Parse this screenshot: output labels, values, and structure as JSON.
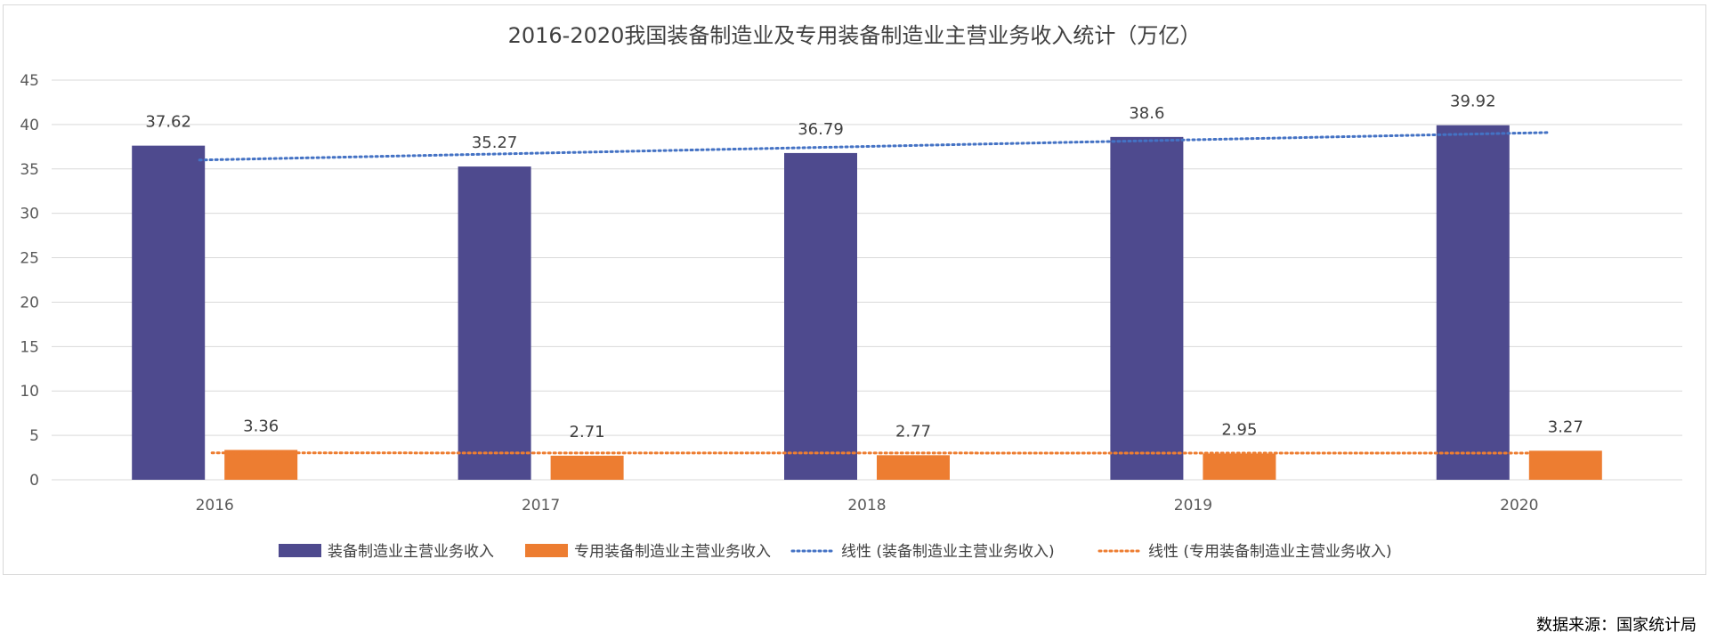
{
  "chart_data": {
    "type": "bar",
    "title": "2016-2020我国装备制造业及专用装备制造业主营业务收入统计（万亿）",
    "categories": [
      "2016",
      "2017",
      "2018",
      "2019",
      "2020"
    ],
    "series": [
      {
        "name": "装备制造业主营业务收入",
        "color": "#4e4a8e",
        "values": [
          37.62,
          35.27,
          36.79,
          38.6,
          39.92
        ]
      },
      {
        "name": "专用装备制造业主营业务收入",
        "color": "#ed7d31",
        "values": [
          3.36,
          2.71,
          2.77,
          2.95,
          3.27
        ]
      }
    ],
    "value_labels": [
      [
        "37.62",
        "35.27",
        "36.79",
        "38.6",
        "39.92"
      ],
      [
        "3.36",
        "2.71",
        "2.77",
        "2.95",
        "3.27"
      ]
    ],
    "trendlines": [
      {
        "name": "线性 (装备制造业主营业务收入)",
        "color": "#4472c4",
        "start": 36.0,
        "end": 39.1
      },
      {
        "name": "线性 (专用装备制造业主营业务收入)",
        "color": "#ed7d31",
        "start": 3.03,
        "end": 3.0
      }
    ],
    "ylim": [
      0,
      45
    ],
    "yticks": [
      "0",
      "5",
      "10",
      "15",
      "20",
      "25",
      "30",
      "35",
      "40",
      "45"
    ],
    "ytick_values": [
      0,
      5,
      10,
      15,
      20,
      25,
      30,
      35,
      40,
      45
    ],
    "grid": true,
    "legend_position": "bottom"
  },
  "source_text": "数据来源：国家统计局",
  "colors": {
    "grid": "#d9d9d9",
    "axis_text": "#595959",
    "title": "#404040"
  }
}
